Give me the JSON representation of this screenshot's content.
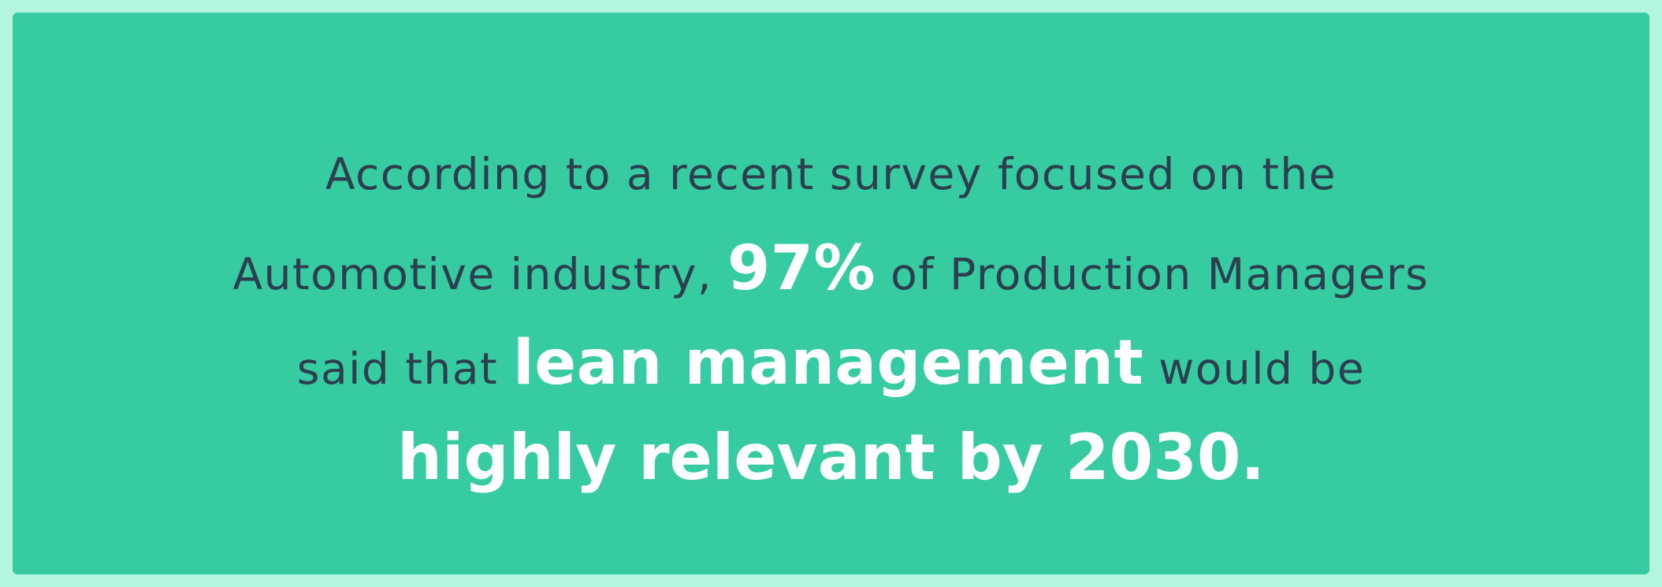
{
  "quote": {
    "line1": "According to a recent survey focused on the",
    "line2_pre": "Automotive industry, ",
    "line2_stat": "97%",
    "line2_post": " of Production Managers",
    "line3_pre": "said that ",
    "line3_highlight": "lean management",
    "line3_post": " would be",
    "line4_highlight": "highly relevant by 2030."
  },
  "colors": {
    "outer_border": "#b4f5e0",
    "card_background": "#36cba1",
    "text_dark": "#2d3e4e",
    "text_highlight": "#ffffff"
  }
}
